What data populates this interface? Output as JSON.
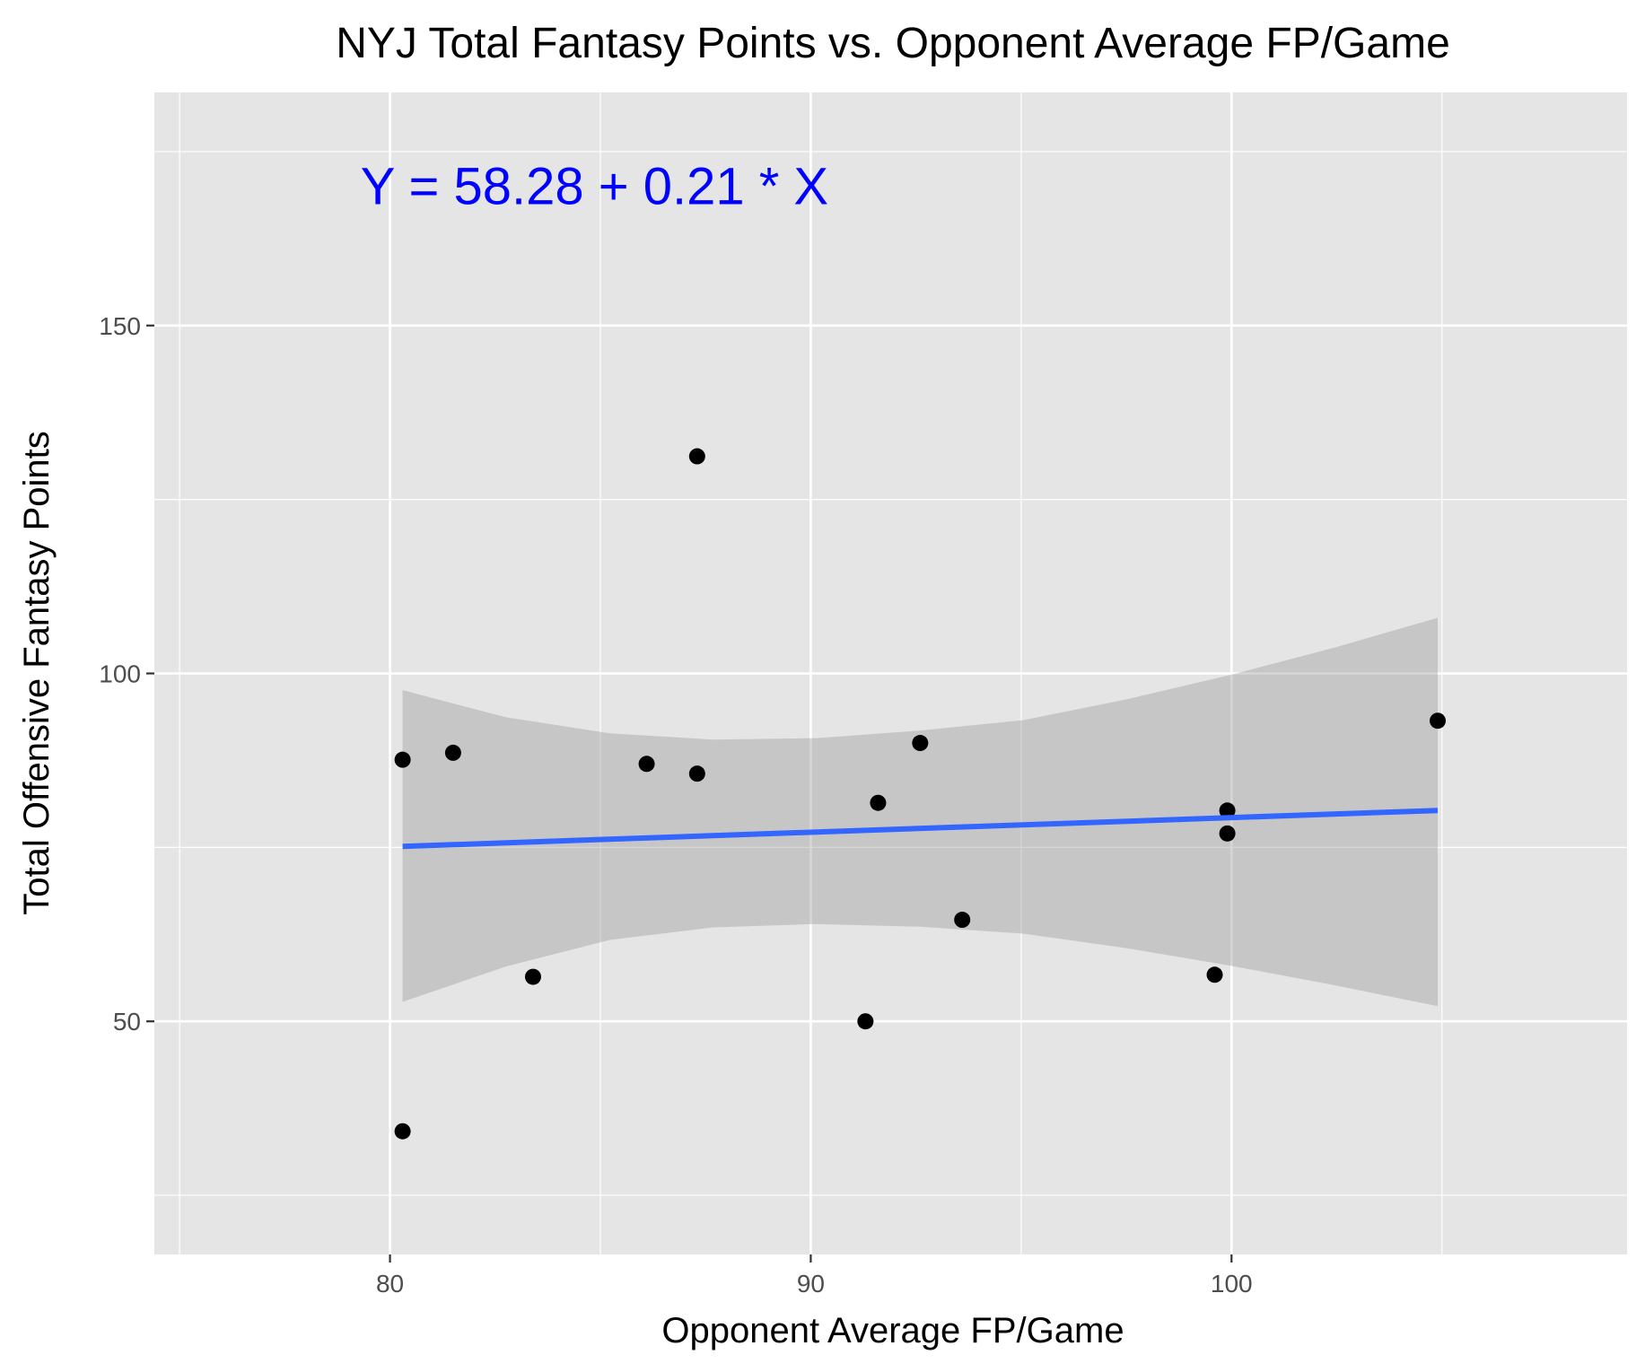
{
  "chart_data": {
    "type": "scatter",
    "title": "NYJ Total Fantasy Points vs. Opponent Average FP/Game",
    "xlabel": "Opponent Average FP/Game",
    "ylabel": "Total Offensive Fantasy Points",
    "xlim": [
      74.4,
      109.4
    ],
    "ylim": [
      16.5,
      183.5
    ],
    "x_ticks": [
      80,
      90,
      100
    ],
    "x_tick_labels": [
      "80",
      "90",
      "100"
    ],
    "y_ticks": [
      50,
      100,
      150
    ],
    "y_tick_labels": [
      "50",
      "100",
      "150"
    ],
    "x_minor_gridlines": [
      75,
      85,
      95,
      105
    ],
    "y_minor_gridlines": [
      25,
      75,
      125,
      175
    ],
    "grid": true,
    "points": [
      {
        "x": 80.3,
        "y": 34.2
      },
      {
        "x": 80.3,
        "y": 87.6
      },
      {
        "x": 81.5,
        "y": 88.6
      },
      {
        "x": 83.4,
        "y": 56.4
      },
      {
        "x": 86.1,
        "y": 87.0
      },
      {
        "x": 87.3,
        "y": 131.2
      },
      {
        "x": 87.3,
        "y": 85.6
      },
      {
        "x": 91.3,
        "y": 50.0
      },
      {
        "x": 91.6,
        "y": 81.4
      },
      {
        "x": 92.6,
        "y": 90.0
      },
      {
        "x": 93.6,
        "y": 64.6
      },
      {
        "x": 99.6,
        "y": 56.7
      },
      {
        "x": 99.9,
        "y": 80.3
      },
      {
        "x": 99.9,
        "y": 77.0
      },
      {
        "x": 104.9,
        "y": 93.2
      }
    ],
    "fit_line": {
      "intercept": 58.28,
      "slope": 0.21,
      "x_range": [
        80.3,
        104.9
      ],
      "color": "#3366ff"
    },
    "confidence_band": {
      "x": [
        80.3,
        82.76,
        85.22,
        87.68,
        90.14,
        92.6,
        95.06,
        97.52,
        99.98,
        102.44,
        104.9
      ],
      "lower": [
        52.8,
        57.9,
        61.7,
        63.5,
        64.0,
        63.6,
        62.6,
        60.5,
        58.0,
        55.2,
        52.2
      ],
      "upper": [
        97.6,
        93.7,
        91.4,
        90.5,
        90.7,
        91.8,
        93.3,
        96.3,
        99.8,
        103.7,
        108.0
      ],
      "color": "#999999"
    },
    "annotation": {
      "text": "Y = 58.28 + 0.21 * X",
      "x": 79.3,
      "y": 170,
      "color": "#0000ff"
    },
    "panel_background": "#e5e5e5",
    "gridline_color": "#ffffff",
    "point_color": "#000000"
  }
}
